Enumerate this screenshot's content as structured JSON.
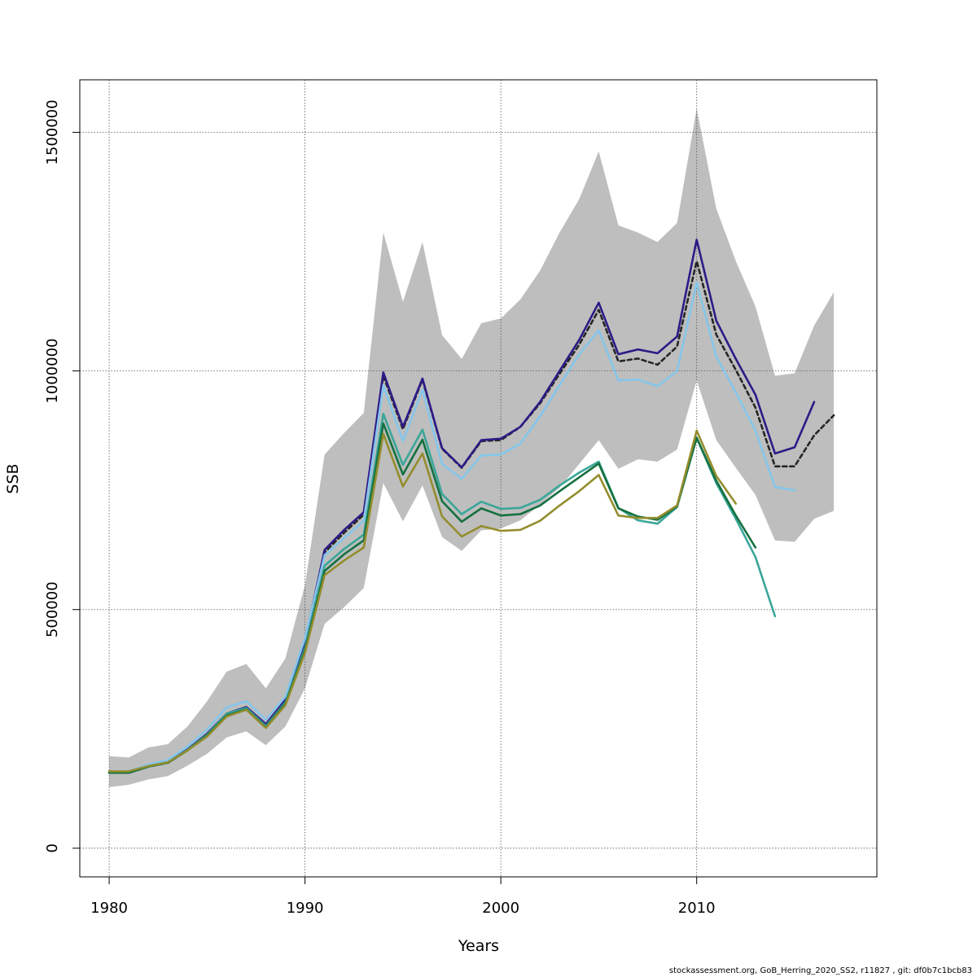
{
  "chart_data": {
    "type": "line",
    "xlabel": "Years",
    "ylabel": "SSB",
    "xlim": [
      1978.5,
      2019.2
    ],
    "ylim": [
      -60000,
      1610000
    ],
    "x_ticks": [
      "1980",
      "1990",
      "2000",
      "2010"
    ],
    "x_tick_values": [
      1980,
      1990,
      2000,
      2010
    ],
    "y_ticks": [
      "0",
      "500000",
      "1000000",
      "1500000"
    ],
    "y_tick_values": [
      0,
      500000,
      1000000,
      1500000
    ],
    "grid": true,
    "confidence_band": {
      "color": "#bebebe",
      "x": [
        1980,
        1981,
        1982,
        1983,
        1984,
        1985,
        1986,
        1987,
        1988,
        1989,
        1990,
        1991,
        1992,
        1993,
        1994,
        1995,
        1996,
        1997,
        1998,
        1999,
        2000,
        2001,
        2002,
        2003,
        2004,
        2005,
        2006,
        2007,
        2008,
        2009,
        2010,
        2011,
        2012,
        2013,
        2014,
        2015,
        2016,
        2017
      ],
      "lower": [
        128000,
        133000,
        144000,
        151000,
        173000,
        198000,
        232000,
        245000,
        216000,
        255000,
        335000,
        470000,
        505000,
        545000,
        765000,
        685000,
        760000,
        652000,
        623000,
        666000,
        670000,
        687000,
        720000,
        755000,
        805000,
        855000,
        795000,
        815000,
        810000,
        835000,
        980000,
        855000,
        797000,
        740000,
        645000,
        642000,
        690000,
        707000
      ],
      "upper": [
        193000,
        190000,
        211000,
        218000,
        255000,
        308000,
        370000,
        386000,
        335000,
        398000,
        552000,
        825000,
        870000,
        912000,
        1290000,
        1145000,
        1270000,
        1075000,
        1025000,
        1100000,
        1110000,
        1150000,
        1210000,
        1290000,
        1360000,
        1460000,
        1305000,
        1290000,
        1270000,
        1310000,
        1550000,
        1340000,
        1230000,
        1135000,
        990000,
        995000,
        1095000,
        1165000
      ]
    },
    "series": [
      {
        "color": "#262626",
        "dashed": true,
        "x_start": 1980,
        "values": [
          158000,
          158000,
          171000,
          179000,
          205000,
          236000,
          276000,
          291000,
          254000,
          306000,
          428000,
          620000,
          661000,
          699000,
          990000,
          878000,
          982000,
          837000,
          797000,
          853000,
          855000,
          883000,
          932000,
          994000,
          1055000,
          1128000,
          1020000,
          1026000,
          1013000,
          1051000,
          1230000,
          1076000,
          1002000,
          923000,
          800000,
          800000,
          865000,
          907000
        ]
      },
      {
        "color": "#2e1a87",
        "dashed": false,
        "x_start": 1980,
        "values": [
          158000,
          158000,
          172000,
          180000,
          207000,
          240000,
          282000,
          296000,
          260000,
          311000,
          434000,
          625000,
          667000,
          704000,
          997000,
          883000,
          984000,
          838000,
          798000,
          855000,
          858000,
          883000,
          935000,
          1000000,
          1065000,
          1143000,
          1035000,
          1045000,
          1037000,
          1072000,
          1275000,
          1105000,
          1025000,
          950000,
          827000,
          840000,
          935000
        ]
      },
      {
        "color": "#85c6ea",
        "dashed": false,
        "x_start": 1980,
        "values": [
          160000,
          161000,
          175000,
          185000,
          213000,
          249000,
          295000,
          308000,
          269000,
          318000,
          440000,
          614000,
          650000,
          686000,
          970000,
          853000,
          961000,
          805000,
          774000,
          823000,
          825000,
          848000,
          905000,
          970000,
          1035000,
          1085000,
          980000,
          982000,
          968000,
          1000000,
          1185000,
          1030000,
          955000,
          875000,
          757000,
          750000
        ]
      },
      {
        "color": "#3aa699",
        "dashed": false,
        "x_start": 1980,
        "values": [
          158000,
          158000,
          172000,
          180000,
          206000,
          238000,
          282000,
          294000,
          256000,
          306000,
          420000,
          592000,
          627000,
          657000,
          910000,
          803000,
          877000,
          742000,
          700000,
          726000,
          711000,
          713000,
          730000,
          760000,
          787000,
          810000,
          713000,
          687000,
          680000,
          715000,
          860000,
          765000,
          690000,
          610000,
          486000
        ]
      },
      {
        "color": "#157040",
        "dashed": false,
        "x_start": 1980,
        "values": [
          158000,
          158000,
          171000,
          179000,
          205000,
          236000,
          278000,
          291000,
          253000,
          303000,
          415000,
          581000,
          616000,
          645000,
          890000,
          783000,
          856000,
          727000,
          684000,
          712000,
          697000,
          700000,
          718000,
          748000,
          777000,
          806000,
          712000,
          695000,
          688000,
          716000,
          860000,
          770000,
          697000,
          630000
        ]
      },
      {
        "color": "#938d2d",
        "dashed": false,
        "x_start": 1980,
        "values": [
          161000,
          161000,
          172000,
          180000,
          205000,
          234000,
          276000,
          290000,
          252000,
          300000,
          410000,
          572000,
          603000,
          630000,
          868000,
          758000,
          827000,
          695000,
          653000,
          675000,
          665000,
          667000,
          686000,
          718000,
          748000,
          782000,
          697000,
          692000,
          692000,
          718000,
          875000,
          780000,
          722000
        ]
      }
    ]
  },
  "footer": "stockassessment.org, GoB_Herring_2020_SS2, r11827 , git: df0b7c1bcb83"
}
